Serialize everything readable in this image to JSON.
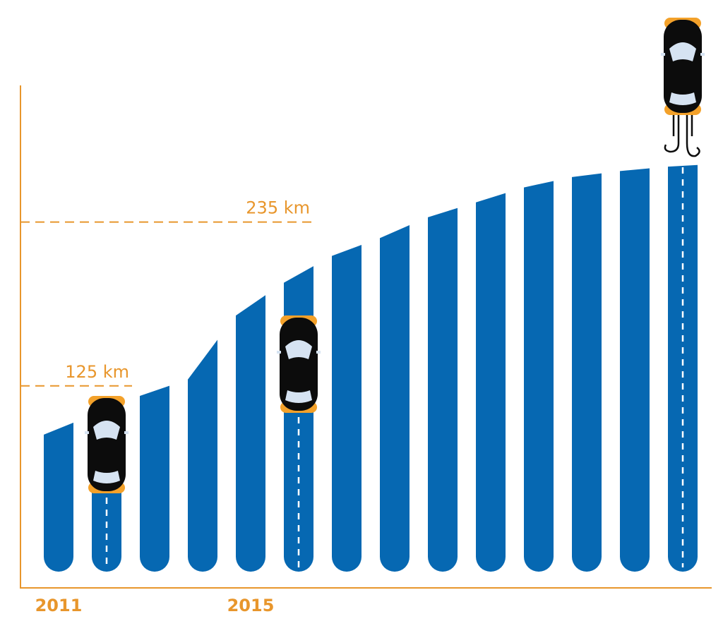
{
  "colors": {
    "road": "#0668b2",
    "axis": "#e8962c",
    "car_body": "#0c0c0c",
    "car_glass": "#d6e3f2",
    "car_lights": "#f3a12a"
  },
  "chart_data": {
    "type": "bar",
    "categories": [
      "2011",
      "",
      "",
      "",
      "2015",
      "",
      "",
      "",
      "",
      "",
      "",
      "",
      "",
      ""
    ],
    "values": [
      92,
      105,
      118,
      129,
      172,
      194,
      212,
      224,
      238,
      248,
      258,
      265,
      269,
      272
    ],
    "unit": "km",
    "ylim": [
      0,
      300
    ],
    "grid": false,
    "annotations": [
      {
        "text": "125 km",
        "value": 125
      },
      {
        "text": "235 km",
        "value": 235
      }
    ],
    "car_markers": [
      1,
      5,
      13
    ],
    "x_tick_labels": [
      "2011",
      "2015"
    ]
  }
}
